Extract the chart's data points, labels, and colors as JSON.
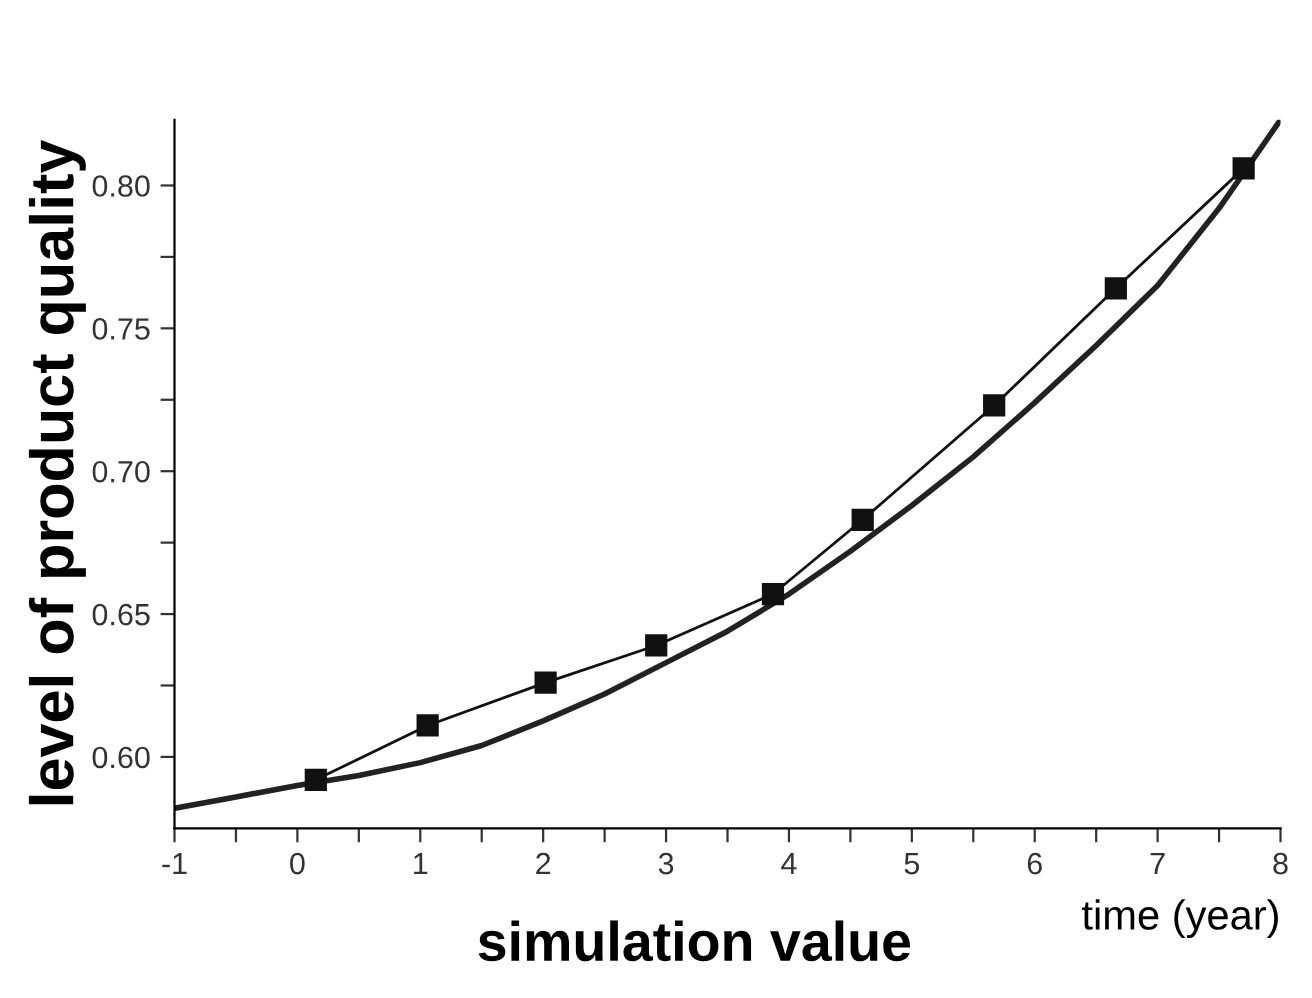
{
  "chart_data": {
    "type": "line",
    "xlabel": "simulation value",
    "ylabel": "level of product quality",
    "annotations": [
      "time (year)"
    ],
    "xlim": [
      -1,
      8
    ],
    "ylim": [
      0.575,
      0.823
    ],
    "xticks": [
      -1,
      {
        "value": -0.5,
        "label": null
      },
      0,
      {
        "value": 0.5,
        "label": null
      },
      1,
      {
        "value": 1.5,
        "label": null
      },
      2,
      {
        "value": 2.5,
        "label": null
      },
      3,
      {
        "value": 3.5,
        "label": null
      },
      4,
      {
        "value": 4.5,
        "label": null
      },
      5,
      {
        "value": 5.5,
        "label": null
      },
      6,
      {
        "value": 6.5,
        "label": null
      },
      7,
      {
        "value": 7.5,
        "label": null
      },
      8
    ],
    "yticks": [
      {
        "value": 0.6,
        "label": "0.60"
      },
      {
        "value": 0.625,
        "label": null
      },
      {
        "value": 0.65,
        "label": "0.65"
      },
      {
        "value": 0.675,
        "label": null
      },
      {
        "value": 0.7,
        "label": "0.70"
      },
      {
        "value": 0.725,
        "label": null
      },
      {
        "value": 0.75,
        "label": "0.75"
      },
      {
        "value": 0.775,
        "label": null
      },
      {
        "value": 0.8,
        "label": "0.80"
      }
    ],
    "grid": false,
    "legend": false,
    "series": [
      {
        "color": "#222222",
        "marker": "none",
        "x": [
          -1,
          -0.5,
          0,
          0.5,
          1,
          1.5,
          2,
          2.5,
          3,
          3.5,
          4,
          4.5,
          5,
          5.5,
          6,
          6.5,
          7,
          7.5,
          8
        ],
        "values": [
          0.582,
          0.586,
          0.59,
          0.5935,
          0.598,
          0.604,
          0.6126,
          0.622,
          0.633,
          0.644,
          0.657,
          0.672,
          0.688,
          0.705,
          0.724,
          0.744,
          0.765,
          0.792,
          0.823
        ]
      },
      {
        "color": "#111111",
        "marker": "square",
        "x": [
          0.15,
          1.06,
          2.02,
          2.92,
          3.87,
          4.6,
          5.67,
          6.66,
          7.7
        ],
        "values": [
          0.592,
          0.611,
          0.626,
          0.639,
          0.657,
          0.683,
          0.723,
          0.764,
          0.806
        ]
      }
    ]
  }
}
